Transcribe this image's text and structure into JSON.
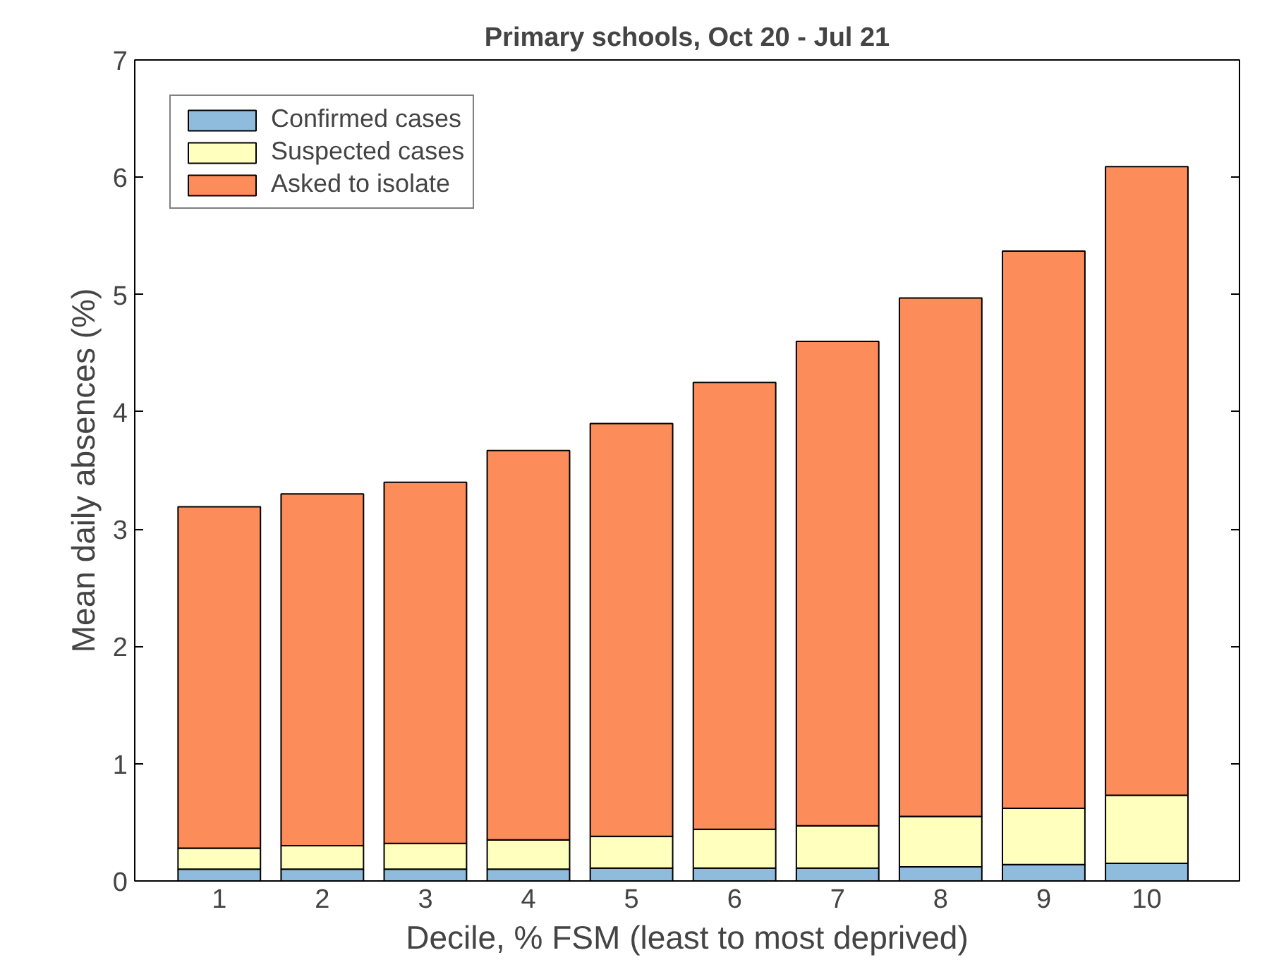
{
  "chart_data": {
    "type": "bar",
    "title": "Primary schools, Oct 20 - Jul 21",
    "xlabel": "Decile, % FSM (least to most deprived)",
    "ylabel": "Mean daily absences (%)",
    "categories": [
      "1",
      "2",
      "3",
      "4",
      "5",
      "6",
      "7",
      "8",
      "9",
      "10"
    ],
    "stacked": true,
    "series": [
      {
        "name": "Confirmed cases",
        "color": "#8fbcdc",
        "values": [
          0.1,
          0.1,
          0.1,
          0.1,
          0.11,
          0.11,
          0.11,
          0.12,
          0.14,
          0.15
        ]
      },
      {
        "name": "Suspected cases",
        "color": "#ffffbe",
        "values": [
          0.18,
          0.2,
          0.22,
          0.25,
          0.27,
          0.33,
          0.36,
          0.43,
          0.48,
          0.58
        ]
      },
      {
        "name": "Asked to isolate",
        "color": "#fc8c59",
        "values": [
          2.91,
          3.0,
          3.08,
          3.32,
          3.52,
          3.81,
          4.13,
          4.42,
          4.75,
          5.36
        ]
      }
    ],
    "ylim": [
      0,
      7
    ],
    "yticks": [
      0,
      1,
      2,
      3,
      4,
      5,
      6,
      7
    ],
    "grid": false,
    "legend": "top left"
  }
}
